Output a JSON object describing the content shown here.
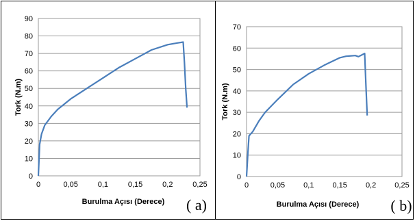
{
  "chart_data": [
    {
      "type": "line",
      "panel_label": "( a)",
      "xlabel": "Burulma Açısı (Derece)",
      "ylabel": "Tork (N.m)",
      "xlim": [
        0,
        0.25
      ],
      "ylim": [
        0,
        90
      ],
      "xticks": [
        "0",
        "0,05",
        "0,1",
        "0,15",
        "0,2",
        "0,25"
      ],
      "yticks": [
        "0",
        "10",
        "20",
        "30",
        "40",
        "50",
        "60",
        "70",
        "80",
        "90"
      ],
      "grid": "horizontal",
      "color": "#4a7ebb",
      "series": [
        {
          "x": [
            0,
            0.002,
            0.005,
            0.01,
            0.02,
            0.03,
            0.05,
            0.075,
            0.1,
            0.125,
            0.15,
            0.175,
            0.2,
            0.215,
            0.224,
            0.226,
            0.228,
            0.23
          ],
          "y": [
            0,
            18,
            24,
            29,
            34,
            38,
            44,
            50,
            56,
            62,
            67,
            72,
            75,
            76,
            76.5,
            65,
            50,
            39
          ]
        }
      ]
    },
    {
      "type": "line",
      "panel_label": "( b)",
      "xlabel": "Burulma Açısı (Derece)",
      "ylabel": "Tork (N.m)",
      "xlim": [
        0,
        0.25
      ],
      "ylim": [
        0,
        70
      ],
      "xticks": [
        "0",
        "0,05",
        "0,1",
        "0,15",
        "0,2",
        "0,25"
      ],
      "yticks": [
        "0",
        "10",
        "20",
        "30",
        "40",
        "50",
        "60",
        "70"
      ],
      "grid": "horizontal",
      "color": "#4a7ebb",
      "series": [
        {
          "x": [
            0,
            0.002,
            0.004,
            0.01,
            0.02,
            0.03,
            0.05,
            0.075,
            0.1,
            0.125,
            0.15,
            0.16,
            0.175,
            0.18,
            0.19,
            0.192,
            0.194
          ],
          "y": [
            0,
            10,
            19,
            21,
            26,
            30,
            36,
            43,
            48,
            52,
            55.5,
            56.2,
            56.5,
            56,
            57.5,
            43,
            28.5
          ]
        }
      ]
    }
  ]
}
